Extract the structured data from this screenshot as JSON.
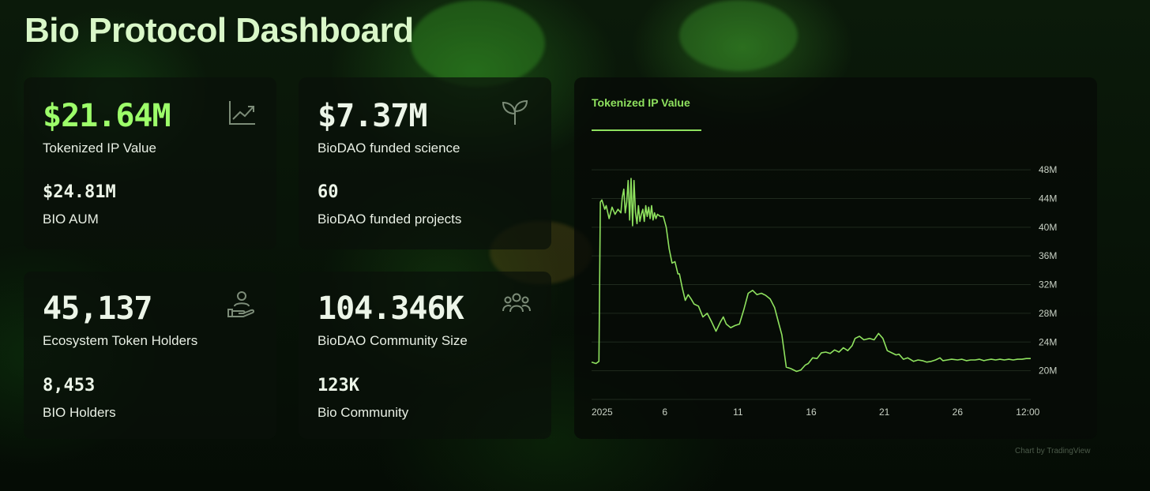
{
  "page": {
    "title": "Bio Protocol Dashboard"
  },
  "cards": [
    {
      "value": "$21.64M",
      "label": "Tokenized IP Value",
      "sub_value": "$24.81M",
      "sub_label": "BIO AUM",
      "icon": "trending-up-icon",
      "accent": true
    },
    {
      "value": "$7.37M",
      "label": "BioDAO funded science",
      "sub_value": "60",
      "sub_label": "BioDAO funded projects",
      "icon": "sprout-icon",
      "accent": false
    },
    {
      "value": "45,137",
      "label": "Ecosystem Token Holders",
      "sub_value": "8,453",
      "sub_label": "BIO Holders",
      "icon": "hand-user-icon",
      "accent": false
    },
    {
      "value": "104.346K",
      "label": "BioDAO Community Size",
      "sub_value": "123K",
      "sub_label": "Bio Community",
      "icon": "users-group-icon",
      "accent": false
    }
  ],
  "chart_tab": "Tokenized IP Value",
  "credit": "Chart by TradingView",
  "colors": {
    "accent": "#9dff6a",
    "line": "#8fe25f",
    "grid": "#1f2a1e"
  },
  "chart_data": {
    "type": "line",
    "title": "Tokenized IP Value",
    "xlabel": "",
    "ylabel": "",
    "x_ticks": [
      "2025",
      "6",
      "11",
      "16",
      "21",
      "26",
      "12:00"
    ],
    "y_ticks": [
      "20M",
      "24M",
      "28M",
      "32M",
      "36M",
      "40M",
      "44M",
      "48M"
    ],
    "ylim": [
      16,
      49
    ],
    "xlim": [
      1,
      31
    ],
    "unit": "M",
    "series": [
      {
        "x": [
          1.0,
          1.3,
          1.5,
          1.6,
          1.7,
          1.9,
          2.0,
          2.2,
          2.4,
          2.6,
          2.8,
          3.0,
          3.1,
          3.2,
          3.3,
          3.4,
          3.5,
          3.6,
          3.7,
          3.8,
          3.9,
          4.0,
          4.1,
          4.2,
          4.3,
          4.4,
          4.5,
          4.6,
          4.7,
          4.8,
          4.9,
          5.0,
          5.1,
          5.2,
          5.3,
          5.4,
          5.5,
          5.7,
          5.9,
          6.1,
          6.3,
          6.5,
          6.7,
          6.9,
          7.0,
          7.2,
          7.4,
          7.6,
          7.8,
          8.0,
          8.3,
          8.6,
          8.9,
          9.2,
          9.5,
          9.8,
          10.0,
          10.2,
          10.5,
          10.8,
          11.1,
          11.4,
          11.7,
          12.0,
          12.3,
          12.6,
          12.9,
          13.2,
          13.5,
          13.8,
          14.0,
          14.3,
          14.6,
          15.0,
          15.3,
          15.6,
          15.8,
          16.1,
          16.4,
          16.7,
          17.0,
          17.3,
          17.6,
          17.9,
          18.2,
          18.5,
          18.8,
          19.0,
          19.3,
          19.6,
          20.0,
          20.3,
          20.6,
          20.9,
          21.2,
          21.5,
          21.8,
          22.0,
          22.3,
          22.6,
          23.0,
          23.3,
          23.6,
          23.9,
          24.2,
          24.5,
          24.8,
          25.0,
          25.3,
          25.6,
          26.0,
          26.3,
          26.6,
          26.9,
          27.2,
          27.5,
          27.8,
          28.0,
          28.3,
          28.6,
          28.9,
          29.2,
          29.5,
          29.8,
          30.1,
          30.4,
          30.7,
          31.0
        ],
        "y": [
          21.2,
          21.0,
          21.3,
          43.5,
          43.8,
          42.5,
          43.0,
          41.2,
          42.8,
          41.8,
          42.5,
          42.0,
          44.2,
          45.3,
          42.0,
          43.5,
          46.5,
          41.0,
          46.8,
          40.2,
          46.5,
          42.0,
          40.5,
          43.0,
          40.8,
          41.8,
          42.5,
          40.8,
          43.0,
          41.5,
          42.8,
          41.2,
          43.0,
          41.0,
          42.0,
          41.2,
          41.8,
          41.5,
          41.5,
          40.0,
          37.0,
          35.0,
          35.2,
          33.5,
          33.5,
          31.5,
          29.8,
          30.6,
          30.0,
          29.3,
          29.0,
          27.5,
          28.0,
          26.8,
          25.5,
          26.8,
          27.5,
          26.5,
          26.0,
          26.3,
          26.5,
          28.5,
          30.8,
          31.2,
          30.6,
          30.8,
          30.5,
          30.0,
          28.8,
          26.5,
          25.0,
          20.5,
          20.3,
          19.9,
          20.1,
          20.8,
          21.0,
          21.8,
          21.7,
          22.5,
          22.6,
          22.4,
          22.9,
          22.6,
          23.2,
          22.8,
          23.5,
          24.5,
          24.8,
          24.3,
          24.5,
          24.3,
          25.2,
          24.5,
          22.8,
          22.5,
          22.2,
          22.3,
          21.6,
          21.8,
          21.3,
          21.5,
          21.4,
          21.2,
          21.3,
          21.5,
          21.8,
          21.4,
          21.5,
          21.6,
          21.5,
          21.6,
          21.4,
          21.5,
          21.5,
          21.6,
          21.4,
          21.5,
          21.6,
          21.5,
          21.6,
          21.5,
          21.6,
          21.5,
          21.6,
          21.6,
          21.7,
          21.7
        ]
      }
    ]
  }
}
